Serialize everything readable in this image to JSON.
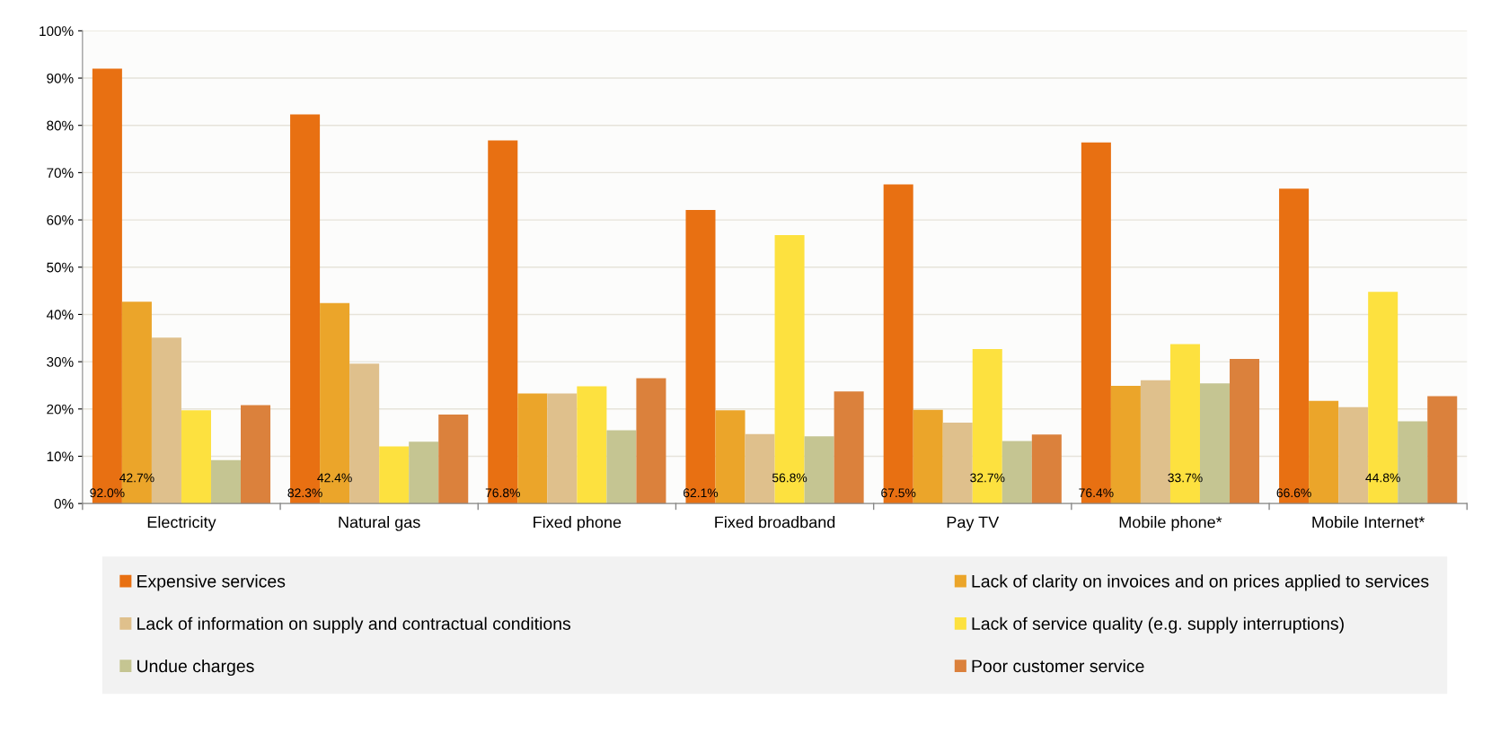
{
  "chart_data": {
    "type": "bar",
    "categories": [
      "Electricity",
      "Natural gas",
      "Fixed phone",
      "Fixed broadband",
      "Pay TV",
      "Mobile phone*",
      "Mobile Internet*"
    ],
    "ylim": [
      0,
      100
    ],
    "yticks": [
      {
        "value": 0,
        "label": "0%"
      },
      {
        "value": 10,
        "label": "10%"
      },
      {
        "value": 20,
        "label": "20%"
      },
      {
        "value": 30,
        "label": "30%"
      },
      {
        "value": 40,
        "label": "40%"
      },
      {
        "value": 50,
        "label": "50%"
      },
      {
        "value": 60,
        "label": "60%"
      },
      {
        "value": 70,
        "label": "70%"
      },
      {
        "value": 80,
        "label": "80%"
      },
      {
        "value": 90,
        "label": "90%"
      },
      {
        "value": 100,
        "label": "100%"
      }
    ],
    "grid": "y",
    "legend": "bottom",
    "series": [
      {
        "name": "Expensive services",
        "color": "#e87012",
        "values": [
          92.0,
          82.3,
          76.8,
          62.1,
          67.5,
          76.4,
          66.6
        ],
        "value_labels": [
          "92.0%",
          "82.3%",
          "76.8%",
          "62.1%",
          "67.5%",
          "76.4%",
          "66.6%"
        ]
      },
      {
        "name": "Lack of clarity on invoices and on prices applied to services",
        "color": "#eba52a",
        "values": [
          42.7,
          42.4,
          23.3,
          19.7,
          19.8,
          24.9,
          21.7
        ],
        "value_labels": [
          "42.7%",
          "42.4%",
          null,
          null,
          null,
          null,
          null
        ]
      },
      {
        "name": "Lack of information on supply and contractual conditions",
        "color": "#dfc08c",
        "values": [
          35.1,
          29.6,
          23.3,
          14.7,
          17.1,
          26.1,
          20.4
        ]
      },
      {
        "name": "Lack of service quality (e.g. supply interruptions)",
        "color": "#fde13f",
        "values": [
          19.7,
          12.1,
          24.8,
          56.8,
          32.7,
          33.7,
          44.8
        ],
        "value_labels": [
          null,
          null,
          null,
          "56.8%",
          "32.7%",
          "33.7%",
          "44.8%"
        ]
      },
      {
        "name": "Undue charges",
        "color": "#c5c592",
        "values": [
          9.2,
          13.1,
          15.5,
          14.2,
          13.2,
          25.4,
          17.4
        ]
      },
      {
        "name": "Poor customer service",
        "color": "#db813c",
        "values": [
          20.8,
          18.8,
          26.5,
          23.7,
          14.6,
          30.6,
          22.7
        ]
      }
    ]
  }
}
